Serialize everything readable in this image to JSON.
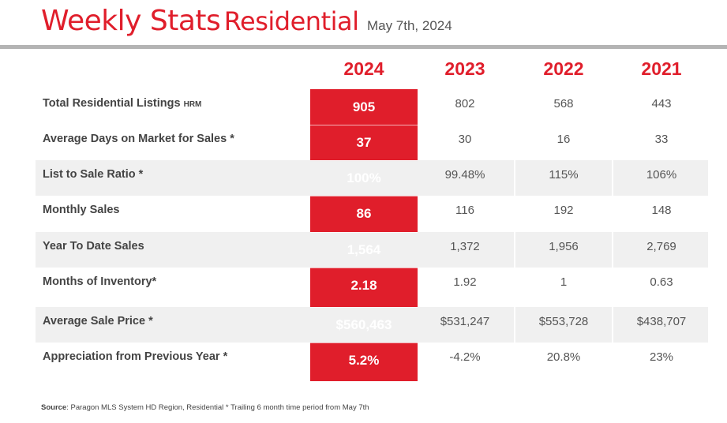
{
  "header": {
    "title_main": "Weekly Stats",
    "title_sub": "Residential",
    "date": "May 7th, 2024"
  },
  "columns": [
    "2024",
    "2023",
    "2022",
    "2021"
  ],
  "rows": [
    {
      "label": "Total Residential Listings",
      "label_suffix": "HRM",
      "values": [
        "905",
        "802",
        "568",
        "443"
      ]
    },
    {
      "label": "Average Days on Market for Sales *",
      "label_suffix": "",
      "values": [
        "37",
        "30",
        "16",
        "33"
      ]
    },
    {
      "label": "List to Sale Ratio *",
      "label_suffix": "",
      "values": [
        "100%",
        "99.48%",
        "115%",
        "106%"
      ]
    },
    {
      "label": "Monthly Sales",
      "label_suffix": "",
      "values": [
        "86",
        "116",
        "192",
        "148"
      ]
    },
    {
      "label": "Year To Date Sales",
      "label_suffix": "",
      "values": [
        "1,564",
        "1,372",
        "1,956",
        "2,769"
      ]
    },
    {
      "label": "Months of Inventory*",
      "label_suffix": "",
      "values": [
        "2.18",
        "1.92",
        "1",
        "0.63"
      ]
    },
    {
      "label": "Average Sale Price *",
      "label_suffix": "",
      "values": [
        "$560,463",
        "$531,247",
        "$553,728",
        "$438,707"
      ]
    },
    {
      "label": "Appreciation from Previous Year *",
      "label_suffix": "",
      "values": [
        "5.2%",
        "-4.2%",
        "20.8%",
        "23%"
      ]
    }
  ],
  "footer": {
    "source_label": "Source",
    "source_text": ": Paragon MLS System HD Region,  Residential * Trailing 6 month time period  from May 7th"
  },
  "colors": {
    "accent": "#e01e2b",
    "rule": "#b4b4b4",
    "shaded_row": "#f0f0f0",
    "label_text": "#444444"
  }
}
